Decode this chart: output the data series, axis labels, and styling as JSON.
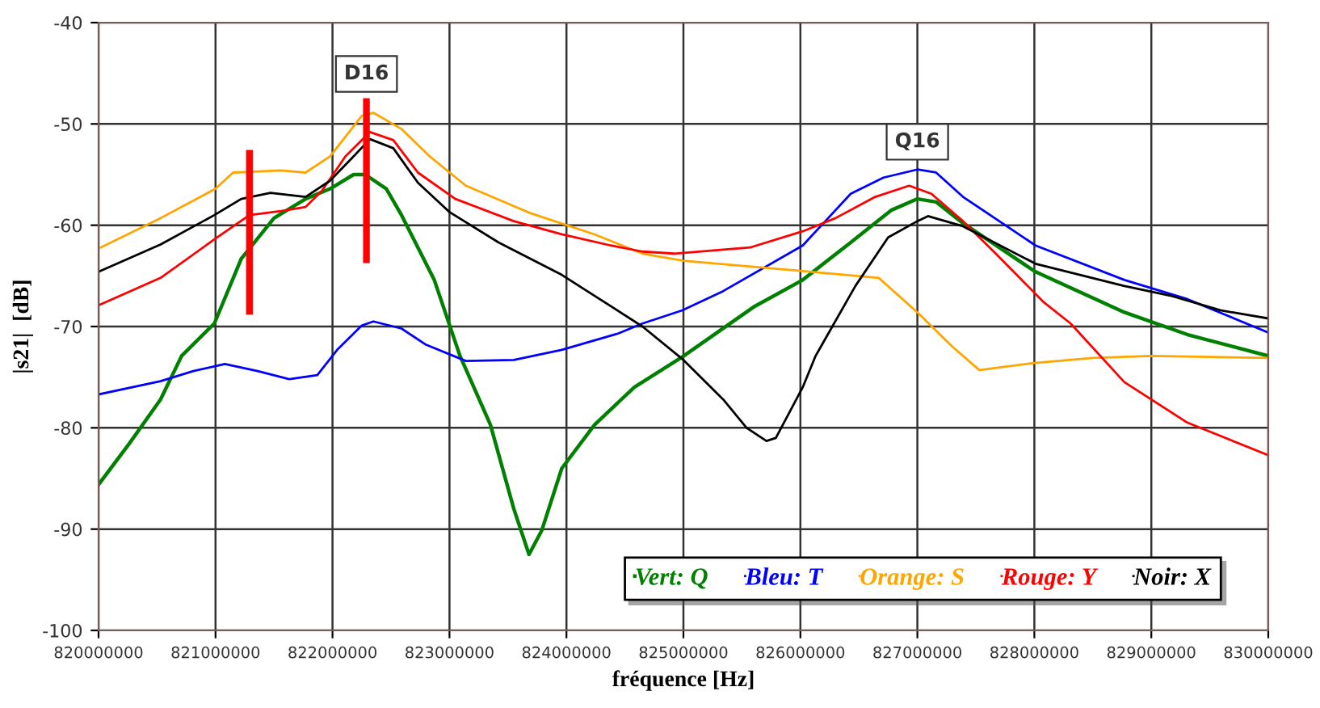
{
  "chart_data": {
    "type": "line",
    "xlabel": "fréquence [Hz]",
    "ylabel": "|s21|  [dB]",
    "xlim": [
      820000000,
      830000000
    ],
    "xticks": [
      820000000,
      821000000,
      822000000,
      823000000,
      824000000,
      825000000,
      826000000,
      827000000,
      828000000,
      829000000,
      830000000
    ],
    "ylim": [
      -100,
      -40
    ],
    "yticks": [
      -100,
      -90,
      -80,
      -70,
      -60,
      -50,
      -40
    ],
    "grid": true,
    "legend": "bottom right",
    "annotations": [
      {
        "text": "D16",
        "x": 822290000,
        "y": -47.8
      },
      {
        "text": "Q16",
        "x": 827000000,
        "y": -54.5
      }
    ],
    "series": [
      {
        "name": "Vert: Q",
        "color": "#008000",
        "x": [
          820000000,
          820260000,
          820530000,
          820710000,
          820990000,
          821220000,
          821500000,
          821770000,
          821980000,
          822180000,
          822280000,
          822460000,
          822590000,
          822870000,
          823090000,
          823350000,
          823550000,
          823680000,
          823790000,
          823960000,
          824240000,
          824580000,
          824990000,
          825610000,
          826020000,
          826430000,
          826780000,
          827000000,
          827160000,
          827390000,
          828010000,
          828770000,
          829310000,
          830000000
        ],
        "values": [
          -85.6,
          -81.6,
          -77.2,
          -72.9,
          -69.7,
          -63.3,
          -59.3,
          -57.4,
          -56.4,
          -55.0,
          -55.0,
          -56.4,
          -59.0,
          -65.4,
          -72.9,
          -79.7,
          -88.0,
          -92.5,
          -90.1,
          -84.0,
          -79.7,
          -76.0,
          -73.0,
          -68.0,
          -65.4,
          -61.7,
          -58.5,
          -57.4,
          -57.7,
          -59.8,
          -64.6,
          -68.6,
          -70.8,
          -72.9
        ]
      },
      {
        "name": "Bleu: T",
        "color": "#0000ff",
        "x": [
          820000000,
          820530000,
          820810000,
          821080000,
          821360000,
          821630000,
          821870000,
          822040000,
          822250000,
          822350000,
          822590000,
          822800000,
          823140000,
          823550000,
          823960000,
          824440000,
          824650000,
          824990000,
          825340000,
          826020000,
          826430000,
          826710000,
          827000000,
          827160000,
          827390000,
          828010000,
          828770000,
          829310000,
          830000000
        ],
        "values": [
          -76.7,
          -75.4,
          -74.4,
          -73.7,
          -74.4,
          -75.2,
          -74.8,
          -72.3,
          -69.9,
          -69.5,
          -70.2,
          -71.8,
          -73.4,
          -73.3,
          -72.3,
          -70.7,
          -69.7,
          -68.4,
          -66.5,
          -62.0,
          -56.9,
          -55.3,
          -54.5,
          -54.8,
          -57.2,
          -62.0,
          -65.4,
          -67.3,
          -70.6
        ]
      },
      {
        "name": "Orange: S",
        "color": "#ffa500",
        "x": [
          820000000,
          820530000,
          821000000,
          821150000,
          821560000,
          821770000,
          821980000,
          822250000,
          822350000,
          822590000,
          822830000,
          823140000,
          823690000,
          824240000,
          824650000,
          825000000,
          826000000,
          826670000,
          827000000,
          827300000,
          827530000,
          828000000,
          828500000,
          829000000,
          829500000,
          830000000
        ],
        "values": [
          -62.3,
          -59.3,
          -56.4,
          -54.8,
          -54.6,
          -54.8,
          -53.2,
          -49.2,
          -48.9,
          -50.5,
          -53.2,
          -56.1,
          -58.8,
          -60.9,
          -62.8,
          -63.5,
          -64.5,
          -65.2,
          -68.6,
          -72.0,
          -74.3,
          -73.6,
          -73.1,
          -72.9,
          -73.0,
          -73.1
        ]
      },
      {
        "name": "Rouge: Y",
        "color": "#ff0000",
        "x": [
          820000000,
          820530000,
          820990000,
          821290000,
          821560000,
          821770000,
          821910000,
          822110000,
          822320000,
          822520000,
          822730000,
          823050000,
          823550000,
          823960000,
          824380000,
          824650000,
          824920000,
          825570000,
          826020000,
          826300000,
          826640000,
          826930000,
          827120000,
          827390000,
          827670000,
          828080000,
          828310000,
          828770000,
          829310000,
          830000000
        ],
        "values": [
          -67.9,
          -65.2,
          -61.4,
          -59.0,
          -58.6,
          -58.2,
          -56.6,
          -53.2,
          -50.8,
          -51.6,
          -54.8,
          -57.4,
          -59.6,
          -60.9,
          -62.0,
          -62.6,
          -62.8,
          -62.2,
          -60.6,
          -59.3,
          -57.2,
          -56.1,
          -56.9,
          -59.6,
          -62.8,
          -67.6,
          -69.7,
          -75.5,
          -79.5,
          -82.7
        ]
      },
      {
        "name": "Noir: X",
        "color": "#000000",
        "x": [
          820000000,
          820530000,
          820990000,
          821220000,
          821470000,
          821770000,
          821980000,
          822180000,
          822320000,
          822520000,
          822730000,
          823000000,
          823420000,
          823960000,
          824650000,
          824990000,
          825340000,
          825540000,
          825710000,
          825790000,
          826020000,
          826130000,
          826470000,
          826750000,
          827000000,
          827090000,
          827390000,
          828010000,
          828770000,
          829180000,
          829590000,
          830000000
        ],
        "values": [
          -64.6,
          -61.9,
          -59.0,
          -57.4,
          -56.8,
          -57.2,
          -55.6,
          -53.2,
          -51.5,
          -52.4,
          -55.8,
          -58.7,
          -61.7,
          -64.9,
          -70.0,
          -73.2,
          -77.2,
          -80.0,
          -81.3,
          -81.0,
          -76.0,
          -72.9,
          -66.0,
          -61.2,
          -59.6,
          -59.1,
          -60.1,
          -63.8,
          -66.0,
          -67.0,
          -68.4,
          -69.2
        ]
      },
      {
        "color": "#ff0000",
        "x": [
          821290000,
          821290000
        ],
        "values": [
          -68.5,
          -52.9
        ]
      },
      {
        "color": "#ff0000",
        "x": [
          822290000,
          822290000
        ],
        "values": [
          -63.4,
          -47.8
        ]
      }
    ]
  }
}
